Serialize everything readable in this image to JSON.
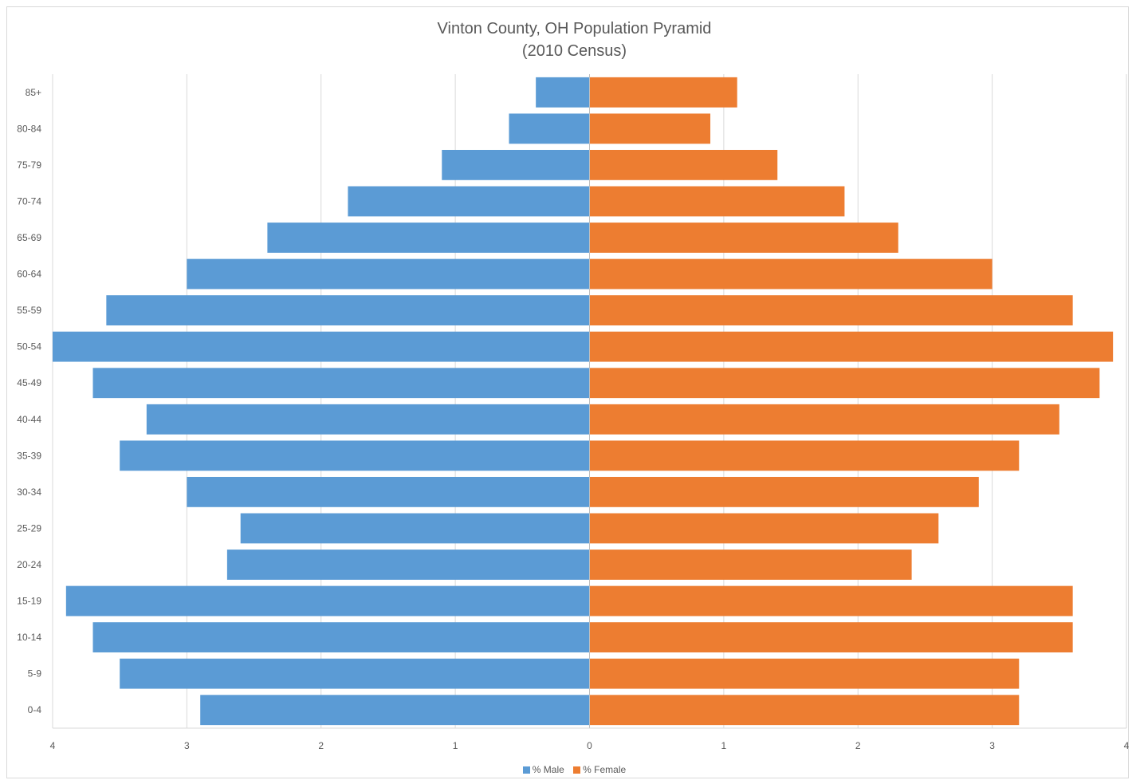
{
  "chart_data": {
    "type": "bar",
    "orientation": "horizontal",
    "layout": "population-pyramid",
    "title": "Vinton County, OH Population Pyramid",
    "subtitle": "(2010 Census)",
    "categories": [
      "85+",
      "80-84",
      "75-79",
      "70-74",
      "65-69",
      "60-64",
      "55-59",
      "50-54",
      "45-49",
      "40-44",
      "35-39",
      "30-34",
      "25-29",
      "20-24",
      "15-19",
      "10-14",
      "5-9",
      "0-4"
    ],
    "series": [
      {
        "name": "% Male",
        "color": "#5b9bd5",
        "side": "left",
        "values": [
          0.4,
          0.6,
          1.1,
          1.8,
          2.4,
          3.0,
          3.6,
          4.0,
          3.7,
          3.3,
          3.5,
          3.0,
          2.6,
          2.7,
          3.9,
          3.7,
          3.5,
          2.9
        ]
      },
      {
        "name": "% Female",
        "color": "#ed7d31",
        "side": "right",
        "values": [
          1.1,
          0.9,
          1.4,
          1.9,
          2.3,
          3.0,
          3.6,
          3.9,
          3.8,
          3.5,
          3.2,
          2.9,
          2.6,
          2.4,
          3.6,
          3.6,
          3.2,
          3.2
        ]
      }
    ],
    "xlim": [
      -4,
      4
    ],
    "xticks": [
      -4,
      -3,
      -2,
      -1,
      0,
      1,
      2,
      3,
      4
    ],
    "xtick_labels": [
      "4",
      "3",
      "2",
      "1",
      "0",
      "1",
      "2",
      "3",
      "4"
    ],
    "grid": true,
    "legend_position": "bottom"
  }
}
